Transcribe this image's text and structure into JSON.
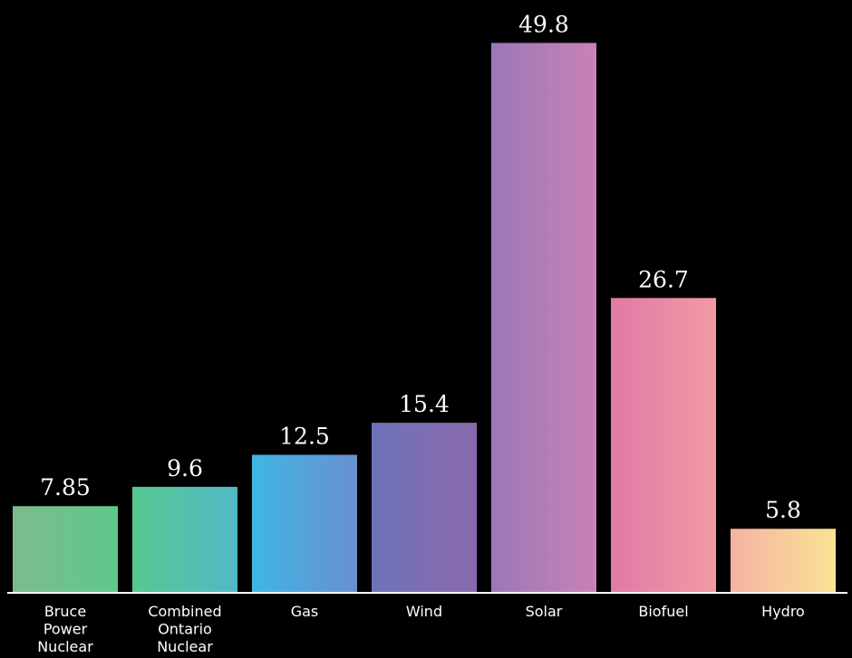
{
  "chart_data": {
    "type": "bar",
    "categories": [
      [
        "Bruce",
        "Power",
        "Nuclear"
      ],
      [
        "Combined",
        "Ontario",
        "Nuclear"
      ],
      [
        "Gas"
      ],
      [
        "Wind"
      ],
      [
        "Solar"
      ],
      [
        "Biofuel"
      ],
      [
        "Hydro"
      ]
    ],
    "values": [
      7.85,
      9.6,
      12.5,
      15.4,
      49.8,
      26.7,
      5.8
    ],
    "value_labels": [
      "7.85",
      "9.6",
      "12.5",
      "15.4",
      "49.8",
      "26.7",
      "5.8"
    ],
    "ylim": [
      0,
      50
    ],
    "grid": false,
    "legend": "none",
    "colors": [
      [
        "#7dba8e",
        "#5ec98c"
      ],
      [
        "#55c98f",
        "#52b8c8"
      ],
      [
        "#3fb6e4",
        "#6a8fd0"
      ],
      [
        "#6f72b8",
        "#8a6aae"
      ],
      [
        "#9b78b8",
        "#c882b6"
      ],
      [
        "#e07aa6",
        "#f29aa2"
      ],
      [
        "#f5b3a3",
        "#f9e393"
      ]
    ]
  }
}
